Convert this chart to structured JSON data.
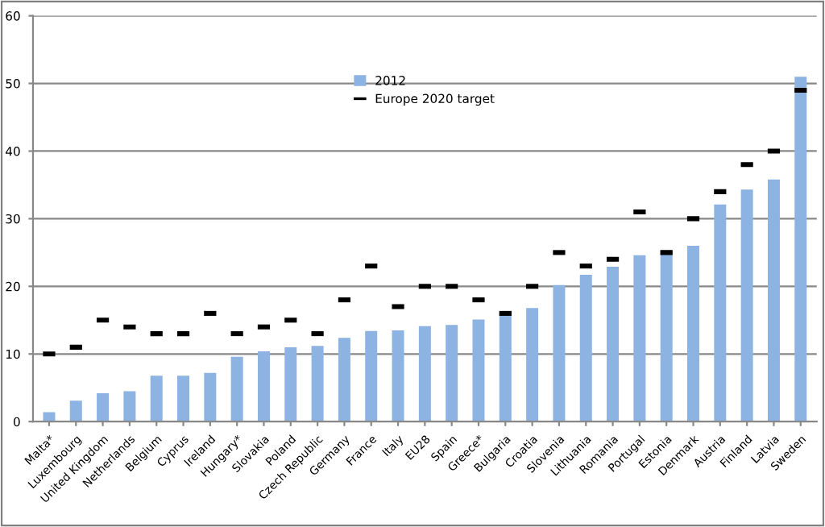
{
  "chart_data": {
    "type": "bar",
    "categories": [
      "Malta*",
      "Luxembourg",
      "United Kingdom",
      "Netherlands",
      "Belgium",
      "Cyprus",
      "Ireland",
      "Hungary*",
      "Slovakia",
      "Poland",
      "Czech Republic",
      "Germany",
      "France",
      "Italy",
      "EU28",
      "Spain",
      "Greece*",
      "Bulgaria",
      "Croatia",
      "Slovenia",
      "Lithuania",
      "Romania",
      "Portugal",
      "Estonia",
      "Denmark",
      "Austria",
      "Finland",
      "Latvia",
      "Sweden"
    ],
    "series": [
      {
        "name": "2012",
        "color": "#8db3e2",
        "values": [
          1.4,
          3.1,
          4.2,
          4.5,
          6.8,
          6.8,
          7.2,
          9.6,
          10.4,
          11.0,
          11.2,
          12.4,
          13.4,
          13.5,
          14.1,
          14.3,
          15.1,
          16.3,
          16.8,
          20.2,
          21.7,
          22.9,
          24.6,
          25.2,
          26.0,
          32.1,
          34.3,
          35.8,
          51.0
        ]
      },
      {
        "name": "Europe 2020 target",
        "type": "scatter",
        "color": "#000000",
        "values": [
          10,
          11,
          15,
          14,
          13,
          13,
          16,
          13,
          14,
          15,
          13,
          18,
          23,
          17,
          20,
          20,
          18,
          16,
          20,
          25,
          23,
          24,
          31,
          25,
          30,
          34,
          38,
          40,
          49
        ]
      }
    ],
    "ylim": [
      0,
      60
    ],
    "yticks": [
      0,
      10,
      20,
      30,
      40,
      50,
      60
    ],
    "grid": "y",
    "legend": "top"
  }
}
